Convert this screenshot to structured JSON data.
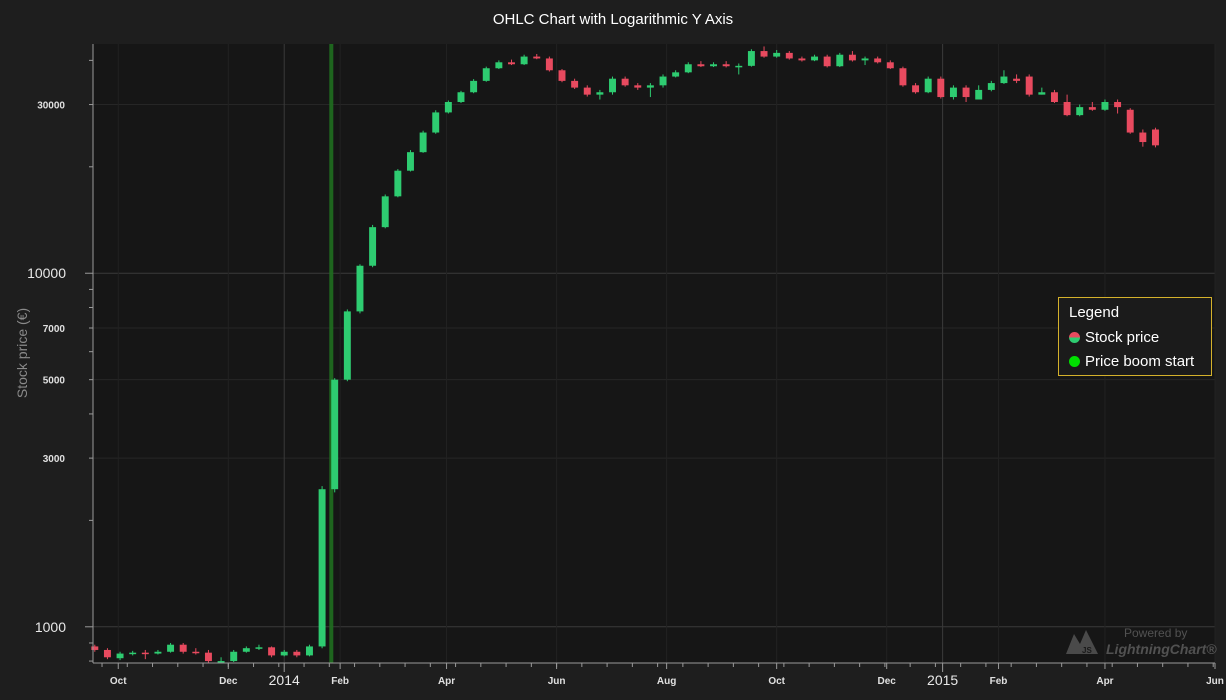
{
  "chart_data": {
    "type": "ohlc",
    "title": "OHLC Chart with Logarithmic Y Axis",
    "ylabel": "Stock price (€)",
    "y_scale": "log",
    "ylim": [
      790,
      44500
    ],
    "xlim": [
      "2013-09-17",
      "2015-06-01"
    ],
    "y_ticks_major": [
      {
        "value": 1000,
        "label": "1000"
      },
      {
        "value": 10000,
        "label": "10000"
      }
    ],
    "y_ticks_labeled_minor": [
      {
        "value": 3000,
        "label": "3000"
      },
      {
        "value": 5000,
        "label": "5000"
      },
      {
        "value": 7000,
        "label": "7000"
      },
      {
        "value": 30000,
        "label": "30000"
      }
    ],
    "x_ticks_major": [
      {
        "date": "2014-01-01",
        "label": "2014"
      },
      {
        "date": "2015-01-01",
        "label": "2015"
      }
    ],
    "x_ticks_minor": [
      {
        "date": "2013-10-01",
        "label": "Oct"
      },
      {
        "date": "2013-12-01",
        "label": "Dec"
      },
      {
        "date": "2014-02-01",
        "label": "Feb"
      },
      {
        "date": "2014-04-01",
        "label": "Apr"
      },
      {
        "date": "2014-06-01",
        "label": "Jun"
      },
      {
        "date": "2014-08-01",
        "label": "Aug"
      },
      {
        "date": "2014-10-01",
        "label": "Oct"
      },
      {
        "date": "2014-12-01",
        "label": "Dec"
      },
      {
        "date": "2015-02-01",
        "label": "Feb"
      },
      {
        "date": "2015-04-01",
        "label": "Apr"
      },
      {
        "date": "2015-06-01",
        "label": "Jun"
      }
    ],
    "highlight_band": {
      "from": "2014-01-26",
      "to": "2014-01-28",
      "color": "#1f6e1f"
    },
    "legend": {
      "position": "right",
      "title": "Legend",
      "entries": [
        {
          "name": "Stock price",
          "color_up": "#2ecc71",
          "color_down": "#e84a5f"
        },
        {
          "name": "Price boom start",
          "color": "#00e000"
        }
      ]
    },
    "series": [
      {
        "name": "Stock price",
        "color_up": "#2ecc71",
        "color_down": "#e84a5f",
        "weekly_start": "2013-09-18",
        "interval_days": 7,
        "close_only_as_flat": true,
        "candles": [
          [
            880,
            860,
            890,
            850
          ],
          [
            860,
            820,
            870,
            810
          ],
          [
            815,
            840,
            850,
            805
          ],
          [
            840,
            845,
            855,
            830
          ],
          [
            845,
            840,
            860,
            810
          ],
          [
            840,
            850,
            860,
            835
          ],
          [
            850,
            890,
            900,
            845
          ],
          [
            890,
            850,
            900,
            840
          ],
          [
            850,
            845,
            870,
            835
          ],
          [
            845,
            800,
            860,
            790
          ],
          [
            800,
            800,
            820,
            790
          ],
          [
            800,
            850,
            860,
            795
          ],
          [
            850,
            870,
            880,
            845
          ],
          [
            870,
            875,
            890,
            860
          ],
          [
            875,
            830,
            880,
            820
          ],
          [
            830,
            850,
            860,
            825
          ],
          [
            850,
            830,
            860,
            820
          ],
          [
            830,
            880,
            890,
            825
          ],
          [
            880,
            2450,
            2500,
            870
          ],
          [
            2450,
            5000,
            5050,
            2400
          ],
          [
            5000,
            7800,
            7900,
            4950
          ],
          [
            7800,
            10500,
            10600,
            7700
          ],
          [
            10500,
            13500,
            13700,
            10400
          ],
          [
            13500,
            16500,
            16700,
            13400
          ],
          [
            16500,
            19500,
            19700,
            16400
          ],
          [
            19500,
            22000,
            22300,
            19400
          ],
          [
            22000,
            25000,
            25300,
            21900
          ],
          [
            25000,
            28500,
            28900,
            24800
          ],
          [
            28500,
            30500,
            30800,
            28300
          ],
          [
            30500,
            32500,
            32800,
            30300
          ],
          [
            32500,
            35000,
            35400,
            32300
          ],
          [
            35000,
            38000,
            38400,
            34800
          ],
          [
            38000,
            39500,
            40000,
            37800
          ],
          [
            39500,
            39000,
            40200,
            38800
          ],
          [
            39000,
            41000,
            41500,
            38800
          ],
          [
            41000,
            40500,
            41700,
            40300
          ],
          [
            40500,
            37500,
            41000,
            37200
          ],
          [
            37500,
            35000,
            37800,
            34700
          ],
          [
            35000,
            33500,
            35500,
            33200
          ],
          [
            33500,
            32000,
            34000,
            31600
          ],
          [
            32000,
            32500,
            33000,
            31000
          ],
          [
            32500,
            35500,
            36000,
            32000
          ],
          [
            35500,
            34000,
            36000,
            33700
          ],
          [
            34000,
            33500,
            34500,
            33000
          ],
          [
            33500,
            34000,
            34500,
            31500
          ],
          [
            34000,
            36000,
            36500,
            33500
          ],
          [
            36000,
            37000,
            37500,
            35800
          ],
          [
            37000,
            39000,
            39500,
            36800
          ],
          [
            39000,
            38500,
            39800,
            38300
          ],
          [
            38500,
            39000,
            39500,
            38300
          ],
          [
            39000,
            38500,
            39800,
            38200
          ],
          [
            38500,
            38600,
            39200,
            36500
          ],
          [
            38600,
            42500,
            43000,
            38400
          ],
          [
            42500,
            41000,
            43800,
            40700
          ],
          [
            41000,
            42000,
            42800,
            40700
          ],
          [
            42000,
            40500,
            42500,
            40200
          ],
          [
            40500,
            40000,
            41000,
            39700
          ],
          [
            40000,
            41000,
            41500,
            39800
          ],
          [
            41000,
            38500,
            41500,
            38200
          ],
          [
            38500,
            41500,
            42000,
            38300
          ],
          [
            41500,
            40000,
            42500,
            39700
          ],
          [
            40000,
            40500,
            41000,
            38800
          ],
          [
            40500,
            39500,
            41000,
            39200
          ],
          [
            39500,
            38000,
            40000,
            37800
          ],
          [
            38000,
            34000,
            38400,
            33700
          ],
          [
            34000,
            32500,
            34500,
            32200
          ],
          [
            32500,
            35500,
            36000,
            32300
          ],
          [
            35500,
            31500,
            36000,
            31200
          ],
          [
            31500,
            33500,
            34000,
            31000
          ],
          [
            33500,
            31500,
            34000,
            30500
          ],
          [
            31000,
            33000,
            34000,
            31000
          ],
          [
            33000,
            34500,
            35000,
            32700
          ],
          [
            34500,
            36000,
            37500,
            34300
          ],
          [
            35500,
            35000,
            36500,
            34500
          ],
          [
            36000,
            32000,
            36500,
            31600
          ],
          [
            32000,
            32500,
            33500,
            32000
          ],
          [
            32500,
            30500,
            33000,
            30300
          ],
          [
            30500,
            28000,
            32000,
            27800
          ],
          [
            28000,
            29500,
            30000,
            27800
          ],
          [
            29500,
            29000,
            30500,
            28800
          ],
          [
            29000,
            30500,
            31000,
            28800
          ],
          [
            30500,
            29500,
            31000,
            28300
          ],
          [
            29000,
            25000,
            29300,
            24800
          ],
          [
            25000,
            23500,
            25500,
            22800
          ],
          [
            25500,
            23000,
            25800,
            22700
          ]
        ]
      }
    ]
  },
  "watermark": {
    "powered": "Powered by",
    "brand": "LightningChart®"
  }
}
